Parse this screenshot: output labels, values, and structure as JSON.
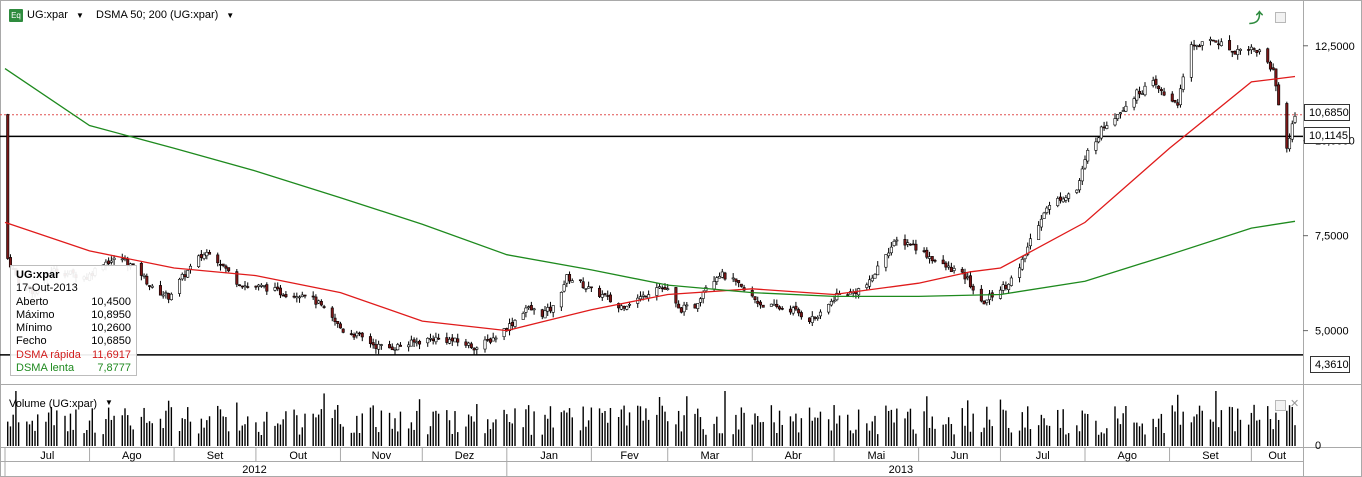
{
  "header": {
    "symbol": "UG:xpar",
    "indicator": "DSMA 50; 200 (UG:xpar)",
    "eq_icon": "Eq"
  },
  "info": {
    "symbol": "UG:xpar",
    "date": "17-Out-2013",
    "rows": [
      {
        "label": "Aberto",
        "value": "10,4500"
      },
      {
        "label": "Máximo",
        "value": "10,8950"
      },
      {
        "label": "Mínimo",
        "value": "10,2600"
      },
      {
        "label": "Fecho",
        "value": "10,6850"
      },
      {
        "label": "DSMA rápida",
        "value": "11,6917"
      },
      {
        "label": "DSMA lenta",
        "value": "7,8777"
      }
    ]
  },
  "price_tags": {
    "current": "10,6850",
    "line": "10,1145",
    "low": "4,3610"
  },
  "volume_panel": {
    "label": "Volume (UG:xpar)",
    "tick_zero": "0"
  },
  "colors": {
    "up_candle": "#ffffff",
    "down_candle": "#7a1616",
    "fast_ma": "#e01b1b",
    "slow_ma": "#1e8a1e",
    "volume": "#000000"
  },
  "chart_data": {
    "type": "candlestick",
    "y_ticks": [
      "12,5000",
      "10,0000",
      "7,5000",
      "5,0000"
    ],
    "y_tick_values": [
      12.5,
      10.0,
      7.5,
      5.0
    ],
    "ylim": [
      3.7,
      13.6
    ],
    "x_range": [
      "2012-07-01",
      "2013-10-17"
    ],
    "months": [
      {
        "label": "Jul",
        "date": "2012-07-01"
      },
      {
        "label": "Ago",
        "date": "2012-08-01"
      },
      {
        "label": "Set",
        "date": "2012-09-01"
      },
      {
        "label": "Out",
        "date": "2012-10-01"
      },
      {
        "label": "Nov",
        "date": "2012-11-01"
      },
      {
        "label": "Dez",
        "date": "2012-12-01"
      },
      {
        "label": "Jan",
        "date": "2013-01-01"
      },
      {
        "label": "Fev",
        "date": "2013-02-01"
      },
      {
        "label": "Mar",
        "date": "2013-03-01"
      },
      {
        "label": "Abr",
        "date": "2013-04-01"
      },
      {
        "label": "Mai",
        "date": "2013-05-01"
      },
      {
        "label": "Jun",
        "date": "2013-06-01"
      },
      {
        "label": "Jul",
        "date": "2013-07-01"
      },
      {
        "label": "Ago",
        "date": "2013-08-01"
      },
      {
        "label": "Set",
        "date": "2013-09-01"
      },
      {
        "label": "Out",
        "date": "2013-10-01"
      }
    ],
    "years": [
      {
        "label": "2012",
        "start": "2012-07-01",
        "end": "2012-12-31"
      },
      {
        "label": "2013",
        "start": "2013-01-01",
        "end": "2013-10-17"
      }
    ],
    "horizontal_lines": [
      {
        "value": 10.1145,
        "style": "solid"
      },
      {
        "value": 10.685,
        "style": "dotted"
      },
      {
        "value": 4.361,
        "style": "solid"
      }
    ],
    "close_path": [
      [
        "2012-07-02",
        6.9
      ],
      [
        "2012-07-06",
        6.3
      ],
      [
        "2012-07-12",
        6.0
      ],
      [
        "2012-07-18",
        6.6
      ],
      [
        "2012-07-25",
        6.5
      ],
      [
        "2012-07-31",
        6.4
      ],
      [
        "2012-08-06",
        6.8
      ],
      [
        "2012-08-13",
        6.9
      ],
      [
        "2012-08-20",
        6.5
      ],
      [
        "2012-08-24",
        6.1
      ],
      [
        "2012-08-30",
        5.9
      ],
      [
        "2012-09-04",
        6.4
      ],
      [
        "2012-09-10",
        6.9
      ],
      [
        "2012-09-14",
        7.1
      ],
      [
        "2012-09-19",
        6.7
      ],
      [
        "2012-09-24",
        6.3
      ],
      [
        "2012-09-28",
        6.15
      ],
      [
        "2012-10-04",
        6.15
      ],
      [
        "2012-10-10",
        6.0
      ],
      [
        "2012-10-15",
        5.95
      ],
      [
        "2012-10-19",
        6.0
      ],
      [
        "2012-10-24",
        5.7
      ],
      [
        "2012-10-29",
        5.3
      ],
      [
        "2012-11-02",
        5.0
      ],
      [
        "2012-11-08",
        4.85
      ],
      [
        "2012-11-14",
        4.6
      ],
      [
        "2012-11-19",
        4.55
      ],
      [
        "2012-11-23",
        4.6
      ],
      [
        "2012-11-29",
        4.7
      ],
      [
        "2012-12-05",
        4.8
      ],
      [
        "2012-12-11",
        4.75
      ],
      [
        "2012-12-17",
        4.65
      ],
      [
        "2012-12-21",
        4.55
      ],
      [
        "2012-12-28",
        4.85
      ],
      [
        "2013-01-03",
        5.2
      ],
      [
        "2013-01-08",
        5.6
      ],
      [
        "2013-01-14",
        5.45
      ],
      [
        "2013-01-18",
        5.6
      ],
      [
        "2013-01-23",
        6.4
      ],
      [
        "2013-01-28",
        6.25
      ],
      [
        "2013-02-01",
        6.05
      ],
      [
        "2013-02-06",
        5.9
      ],
      [
        "2013-02-11",
        5.6
      ],
      [
        "2013-02-15",
        5.75
      ],
      [
        "2013-02-20",
        5.9
      ],
      [
        "2013-02-25",
        6.2
      ],
      [
        "2013-03-01",
        6.05
      ],
      [
        "2013-03-05",
        5.55
      ],
      [
        "2013-03-11",
        5.65
      ],
      [
        "2013-03-15",
        6.2
      ],
      [
        "2013-03-20",
        6.5
      ],
      [
        "2013-03-25",
        6.3
      ],
      [
        "2013-03-29",
        6.05
      ],
      [
        "2013-04-04",
        5.7
      ],
      [
        "2013-04-10",
        5.6
      ],
      [
        "2013-04-16",
        5.55
      ],
      [
        "2013-04-22",
        5.3
      ],
      [
        "2013-04-26",
        5.4
      ],
      [
        "2013-05-02",
        5.95
      ],
      [
        "2013-05-08",
        6.0
      ],
      [
        "2013-05-14",
        6.25
      ],
      [
        "2013-05-20",
        7.05
      ],
      [
        "2013-05-24",
        7.35
      ],
      [
        "2013-05-29",
        7.3
      ],
      [
        "2013-06-04",
        7.0
      ],
      [
        "2013-06-10",
        6.7
      ],
      [
        "2013-06-14",
        6.6
      ],
      [
        "2013-06-19",
        6.35
      ],
      [
        "2013-06-24",
        5.7
      ],
      [
        "2013-06-28",
        5.95
      ],
      [
        "2013-07-03",
        6.2
      ],
      [
        "2013-07-08",
        6.6
      ],
      [
        "2013-07-12",
        7.4
      ],
      [
        "2013-07-17",
        8.15
      ],
      [
        "2013-07-23",
        8.5
      ],
      [
        "2013-07-29",
        8.7
      ],
      [
        "2013-08-02",
        9.7
      ],
      [
        "2013-08-08",
        10.4
      ],
      [
        "2013-08-14",
        10.8
      ],
      [
        "2013-08-20",
        11.25
      ],
      [
        "2013-08-26",
        11.5
      ],
      [
        "2013-08-30",
        11.2
      ],
      [
        "2013-09-04",
        11.0
      ],
      [
        "2013-09-09",
        12.5
      ],
      [
        "2013-09-13",
        12.55
      ],
      [
        "2013-09-18",
        12.65
      ],
      [
        "2013-09-24",
        12.35
      ],
      [
        "2013-09-30",
        12.45
      ],
      [
        "2013-10-04",
        12.35
      ],
      [
        "2013-10-09",
        11.85
      ],
      [
        "2013-10-14",
        9.8
      ],
      [
        "2013-10-17",
        10.685
      ]
    ],
    "series": [
      {
        "name": "DSMA rápida",
        "color": "#e01b1b",
        "points": [
          [
            "2012-07-01",
            7.85
          ],
          [
            "2012-08-01",
            7.1
          ],
          [
            "2012-09-01",
            6.65
          ],
          [
            "2012-10-01",
            6.45
          ],
          [
            "2012-11-01",
            6.0
          ],
          [
            "2012-12-01",
            5.25
          ],
          [
            "2013-01-01",
            5.0
          ],
          [
            "2013-01-15",
            5.25
          ],
          [
            "2013-02-01",
            5.55
          ],
          [
            "2013-03-01",
            5.95
          ],
          [
            "2013-04-01",
            6.1
          ],
          [
            "2013-05-01",
            5.95
          ],
          [
            "2013-06-01",
            6.25
          ],
          [
            "2013-06-20",
            6.55
          ],
          [
            "2013-07-01",
            6.65
          ],
          [
            "2013-08-01",
            7.85
          ],
          [
            "2013-09-01",
            9.8
          ],
          [
            "2013-10-01",
            11.55
          ],
          [
            "2013-10-17",
            11.6917
          ]
        ]
      },
      {
        "name": "DSMA lenta",
        "color": "#1e8a1e",
        "points": [
          [
            "2012-07-01",
            11.9
          ],
          [
            "2012-08-01",
            10.4
          ],
          [
            "2012-09-01",
            9.8
          ],
          [
            "2012-10-01",
            9.2
          ],
          [
            "2012-11-01",
            8.5
          ],
          [
            "2012-12-01",
            7.8
          ],
          [
            "2013-01-01",
            7.0
          ],
          [
            "2013-02-01",
            6.6
          ],
          [
            "2013-03-01",
            6.2
          ],
          [
            "2013-04-01",
            6.0
          ],
          [
            "2013-05-01",
            5.9
          ],
          [
            "2013-06-01",
            5.9
          ],
          [
            "2013-07-01",
            5.95
          ],
          [
            "2013-08-01",
            6.3
          ],
          [
            "2013-09-01",
            7.0
          ],
          [
            "2013-10-01",
            7.7
          ],
          [
            "2013-10-17",
            7.8777
          ]
        ]
      }
    ]
  }
}
